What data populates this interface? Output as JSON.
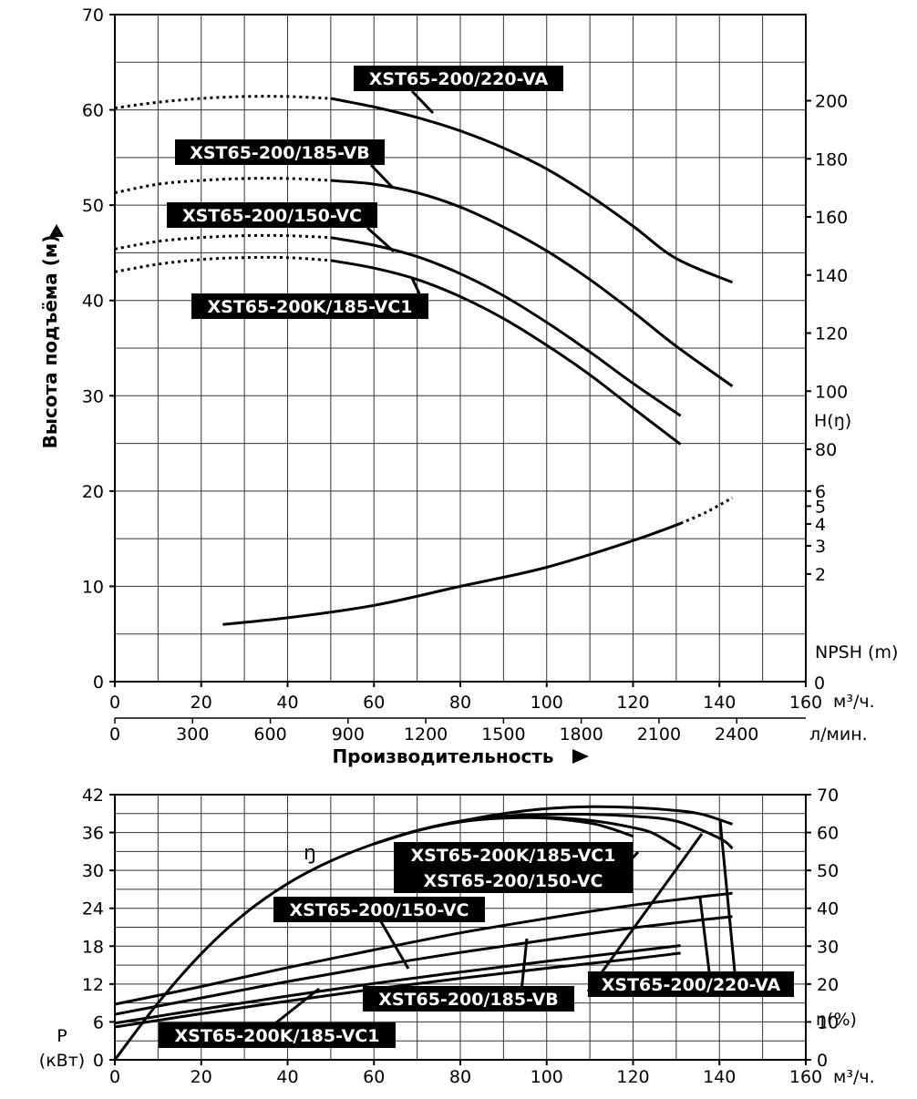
{
  "chart_data": [
    {
      "type": "line",
      "title": "",
      "xlabel": "Производительность",
      "ylabel": "Высота подъёма (м)",
      "xlim": [
        0,
        160
      ],
      "ylim": [
        0,
        70
      ],
      "grid": true,
      "x_ticks": [
        "0",
        "20",
        "40",
        "60",
        "80",
        "100",
        "120",
        "140",
        "160"
      ],
      "x_unit": "м³/ч.",
      "x2_ticks": [
        "0",
        "300",
        "600",
        "900",
        "1200",
        "1500",
        "1800",
        "2100",
        "2400"
      ],
      "x2_unit": "л/мин.",
      "y_ticks": [
        "0",
        "10",
        "20",
        "30",
        "40",
        "50",
        "60",
        "70"
      ],
      "right_axis_head_ticks": [
        "200",
        "180",
        "160",
        "140",
        "120",
        "100",
        "80"
      ],
      "right_axis_head_label": "H(ŋ)",
      "right_axis_npsh_ticks": [
        "6",
        "5",
        "4",
        "3",
        "2"
      ],
      "right_axis_npsh_label": "NPSH (m)",
      "right_axis_zero": "0",
      "series": [
        {
          "name": "XST65-200/220-VA",
          "kind": "head",
          "dashed_until": 50,
          "x": [
            0,
            10,
            20,
            30,
            40,
            50,
            60,
            70,
            80,
            90,
            100,
            110,
            120,
            130,
            143
          ],
          "y": [
            60.2,
            60.8,
            61.2,
            61.4,
            61.4,
            61.2,
            60.3,
            59.2,
            57.8,
            56.0,
            53.8,
            51.0,
            47.8,
            44.4,
            41.9
          ]
        },
        {
          "name": "XST65-200/185-VB",
          "kind": "head",
          "dashed_until": 50,
          "x": [
            0,
            10,
            20,
            30,
            40,
            50,
            60,
            70,
            80,
            90,
            100,
            110,
            120,
            130,
            143
          ],
          "y": [
            51.3,
            52.2,
            52.6,
            52.8,
            52.8,
            52.6,
            52.2,
            51.3,
            49.8,
            47.7,
            45.2,
            42.2,
            38.8,
            35.2,
            31.0
          ]
        },
        {
          "name": "XST65-200/150-VC",
          "kind": "head",
          "dashed_until": 50,
          "x": [
            0,
            10,
            20,
            30,
            40,
            50,
            60,
            70,
            80,
            90,
            100,
            110,
            120,
            131
          ],
          "y": [
            45.4,
            46.2,
            46.6,
            46.8,
            46.8,
            46.6,
            45.8,
            44.6,
            42.8,
            40.5,
            37.7,
            34.6,
            31.3,
            27.9
          ]
        },
        {
          "name": "XST65-200K/185-VC1",
          "kind": "head",
          "dashed_until": 50,
          "x": [
            0,
            10,
            20,
            30,
            40,
            50,
            60,
            70,
            80,
            90,
            100,
            110,
            120,
            131
          ],
          "y": [
            43.0,
            43.8,
            44.3,
            44.5,
            44.5,
            44.2,
            43.4,
            42.2,
            40.4,
            38.1,
            35.3,
            32.2,
            28.7,
            24.9
          ]
        },
        {
          "name": "NPSH",
          "kind": "npsh",
          "dashed_from": 131,
          "x": [
            25,
            40,
            60,
            80,
            100,
            120,
            131,
            137,
            143
          ],
          "y": [
            6.0,
            6.7,
            8.0,
            10.0,
            12.0,
            14.8,
            16.6,
            17.8,
            19.3
          ]
        }
      ],
      "labels": [
        {
          "text": "XST65-200/220-VA",
          "series": "XST65-200/220-VA"
        },
        {
          "text": "XST65-200/185-VB",
          "series": "XST65-200/185-VB"
        },
        {
          "text": "XST65-200/150-VC",
          "series": "XST65-200/150-VC"
        },
        {
          "text": "XST65-200K/185-VC1",
          "series": "XST65-200K/185-VC1"
        }
      ]
    },
    {
      "type": "line",
      "title": "",
      "xlabel": "",
      "ylabel": "P\n(кВт)",
      "xlim": [
        0,
        160
      ],
      "ylim": [
        0,
        42
      ],
      "grid": true,
      "x_ticks": [
        "0",
        "20",
        "40",
        "60",
        "80",
        "100",
        "120",
        "140",
        "160"
      ],
      "x_unit": "м³/ч.",
      "y_ticks": [
        "0",
        "6",
        "12",
        "18",
        "24",
        "30",
        "36",
        "42"
      ],
      "y_label_p": "P",
      "y_label_unit": "(кВт)",
      "right_ticks": [
        "0",
        "10",
        "20",
        "30",
        "40",
        "50",
        "60",
        "70"
      ],
      "right_label": "ŋ(%)",
      "right_lim": [
        0,
        70
      ],
      "eta_symbol": "ŋ",
      "series": [
        {
          "name": "ŋ",
          "kind": "efficiency",
          "axis": "right",
          "x": [
            0,
            10,
            20,
            30,
            40,
            50,
            60,
            70,
            80,
            90,
            100,
            110,
            120,
            130,
            136,
            143
          ],
          "y": [
            0,
            15,
            28,
            38.5,
            46.5,
            52.5,
            57,
            60.5,
            63,
            65,
            66.3,
            66.8,
            66.6,
            65.8,
            64.8,
            62.2
          ]
        },
        {
          "name": "XST65-200/220-VA",
          "kind": "efficiency",
          "axis": "right",
          "x": [
            60,
            70,
            80,
            90,
            100,
            110,
            120,
            130,
            140,
            143
          ],
          "y": [
            57,
            60.5,
            63,
            64.3,
            64.8,
            64.8,
            64.3,
            63,
            58.5,
            55.8
          ]
        },
        {
          "name": "XST65-200/150-VC",
          "kind": "efficiency",
          "axis": "right",
          "x": [
            60,
            70,
            80,
            90,
            100,
            110,
            115,
            120
          ],
          "y": [
            57,
            60.5,
            62.8,
            63.8,
            63.8,
            62.5,
            61,
            59
          ]
        },
        {
          "name": "XST65-200K/185-VC1",
          "kind": "efficiency",
          "axis": "right",
          "x": [
            60,
            70,
            80,
            90,
            100,
            110,
            120,
            125,
            131
          ],
          "y": [
            57,
            60.5,
            62.8,
            64,
            64,
            63.2,
            61.3,
            59.6,
            55.5
          ]
        },
        {
          "name": "XST65-200/220-VA",
          "kind": "power",
          "axis": "left",
          "x": [
            0,
            20,
            40,
            60,
            80,
            100,
            120,
            143
          ],
          "y": [
            8.8,
            11.6,
            14.6,
            17.4,
            20.1,
            22.4,
            24.5,
            26.4
          ]
        },
        {
          "name": "XST65-200/185-VB",
          "kind": "power",
          "axis": "left",
          "x": [
            0,
            20,
            40,
            60,
            80,
            100,
            120,
            143
          ],
          "y": [
            7.2,
            9.8,
            12.4,
            14.8,
            17.0,
            19.0,
            20.9,
            22.7
          ]
        },
        {
          "name": "XST65-200/150-VC",
          "kind": "power",
          "axis": "left",
          "x": [
            0,
            20,
            40,
            60,
            80,
            100,
            120,
            131
          ],
          "y": [
            5.8,
            8.0,
            10.1,
            12.1,
            13.9,
            15.6,
            17.2,
            18.1
          ]
        },
        {
          "name": "XST65-200K/185-VC1",
          "kind": "power",
          "axis": "left",
          "x": [
            0,
            20,
            40,
            60,
            80,
            100,
            120,
            131
          ],
          "y": [
            5.2,
            7.3,
            9.3,
            11.2,
            12.9,
            14.5,
            16.0,
            16.9
          ]
        }
      ],
      "labels": [
        {
          "text": "XST65-200K/185-VC1"
        },
        {
          "text": "XST65-200/150-VC"
        },
        {
          "text": "XST65-200/150-VC"
        },
        {
          "text": "XST65-200/185-VB"
        },
        {
          "text": "XST65-200/220-VA"
        },
        {
          "text": "XST65-200K/185-VC1"
        }
      ]
    }
  ]
}
